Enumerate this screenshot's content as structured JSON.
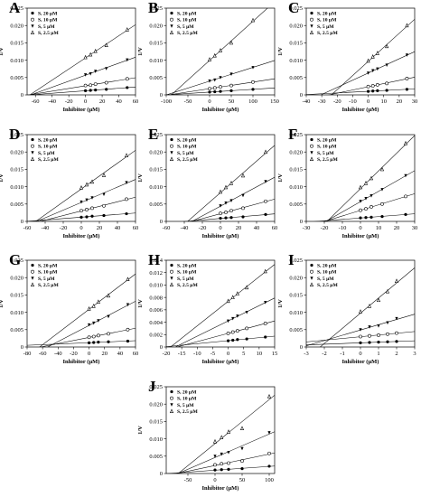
{
  "legend_labels": [
    "S, 20 μM",
    "S, 10 μM",
    "S, 5 μM",
    "S, 2.5 μM"
  ],
  "chart_data": [
    {
      "panel": "A",
      "type": "scatter",
      "xlabel": "Inhibitor (μM)",
      "ylabel": "1/V",
      "xlim": [
        -70,
        60
      ],
      "ylim": [
        0,
        0.025
      ],
      "xticks": [
        -60,
        -40,
        -20,
        0,
        20,
        40,
        60
      ],
      "yticks": [
        0.0,
        0.005,
        0.01,
        0.015,
        0.02,
        0.025
      ],
      "legend_position": "top-left",
      "grid": false,
      "series": [
        {
          "name": "S, 20 μM",
          "x": [
            0,
            6,
            12,
            25,
            50
          ],
          "y": [
            0.0012,
            0.0013,
            0.0014,
            0.0016,
            0.0021
          ]
        },
        {
          "name": "S, 10 μM",
          "x": [
            0,
            6,
            12,
            25,
            50
          ],
          "y": [
            0.0027,
            0.0028,
            0.0031,
            0.0035,
            0.0046
          ]
        },
        {
          "name": "S, 5 μM",
          "x": [
            0,
            6,
            12,
            25,
            50
          ],
          "y": [
            0.0058,
            0.0061,
            0.0068,
            0.0076,
            0.0101
          ]
        },
        {
          "name": "S, 2.5 μM",
          "x": [
            0,
            6,
            12,
            25,
            50
          ],
          "y": [
            0.0108,
            0.0116,
            0.0126,
            0.0143,
            0.0188
          ]
        }
      ]
    },
    {
      "panel": "B",
      "type": "scatter",
      "xlabel": "Inhibitor (μM)",
      "ylabel": "1/V",
      "xlim": [
        -100,
        150
      ],
      "ylim": [
        0,
        0.025
      ],
      "xticks": [
        -100,
        -50,
        0,
        50,
        100,
        150
      ],
      "yticks": [
        0.0,
        0.005,
        0.01,
        0.015,
        0.02,
        0.025
      ],
      "legend_position": "top-left",
      "grid": false,
      "series": [
        {
          "name": "S, 20 μM",
          "x": [
            0,
            12,
            25,
            50,
            100
          ],
          "y": [
            0.0008,
            0.0009,
            0.001,
            0.0012,
            0.0016
          ]
        },
        {
          "name": "S, 10 μM",
          "x": [
            0,
            12,
            25,
            50,
            100
          ],
          "y": [
            0.0018,
            0.002,
            0.0023,
            0.0027,
            0.0037
          ]
        },
        {
          "name": "S, 5 μM",
          "x": [
            0,
            12,
            25,
            50,
            100
          ],
          "y": [
            0.004,
            0.0043,
            0.005,
            0.006,
            0.0079
          ]
        },
        {
          "name": "S, 2.5 μM",
          "x": [
            0,
            12,
            25,
            50,
            100
          ],
          "y": [
            0.0102,
            0.0113,
            0.0128,
            0.015,
            0.0215
          ]
        }
      ]
    },
    {
      "panel": "C",
      "type": "scatter",
      "xlabel": "Inhibitor (μM)",
      "ylabel": "1/V",
      "xlim": [
        -40,
        30
      ],
      "ylim": [
        0,
        0.025
      ],
      "xticks": [
        -40,
        -30,
        -20,
        -10,
        0,
        10,
        20,
        30
      ],
      "yticks": [
        0.0,
        0.005,
        0.01,
        0.015,
        0.02,
        0.025
      ],
      "legend_position": "top-left",
      "grid": false,
      "series": [
        {
          "name": "S, 20 μM",
          "x": [
            0,
            3,
            6,
            12,
            25
          ],
          "y": [
            0.001,
            0.0011,
            0.0012,
            0.0013,
            0.0016
          ]
        },
        {
          "name": "S, 10 μM",
          "x": [
            0,
            3,
            6,
            12,
            25
          ],
          "y": [
            0.0024,
            0.0026,
            0.0029,
            0.0033,
            0.0047
          ]
        },
        {
          "name": "S, 5 μM",
          "x": [
            0,
            3,
            6,
            12,
            25
          ],
          "y": [
            0.0063,
            0.007,
            0.0075,
            0.0086,
            0.0115
          ]
        },
        {
          "name": "S, 2.5 μM",
          "x": [
            0,
            3,
            6,
            12,
            25
          ],
          "y": [
            0.0098,
            0.011,
            0.012,
            0.014,
            0.02
          ]
        }
      ]
    },
    {
      "panel": "D",
      "type": "scatter",
      "xlabel": "Inhibitor (μM)",
      "ylabel": "1/V",
      "xlim": [
        -60,
        60
      ],
      "ylim": [
        0,
        0.025
      ],
      "xticks": [
        -60,
        -40,
        -20,
        0,
        20,
        40,
        60
      ],
      "yticks": [
        0.0,
        0.005,
        0.01,
        0.015,
        0.02,
        0.025
      ],
      "legend_position": "top-left",
      "grid": false,
      "series": [
        {
          "name": "S, 20 μM",
          "x": [
            0,
            6,
            12,
            25,
            50
          ],
          "y": [
            0.0012,
            0.0013,
            0.0015,
            0.0017,
            0.0022
          ]
        },
        {
          "name": "S, 10 μM",
          "x": [
            0,
            6,
            12,
            25,
            50
          ],
          "y": [
            0.0031,
            0.0034,
            0.0038,
            0.0045,
            0.0064
          ]
        },
        {
          "name": "S, 5 μM",
          "x": [
            0,
            6,
            12,
            25,
            50
          ],
          "y": [
            0.0056,
            0.0062,
            0.0068,
            0.0078,
            0.0112
          ]
        },
        {
          "name": "S, 2.5 μM",
          "x": [
            0,
            6,
            12,
            25,
            50
          ],
          "y": [
            0.0097,
            0.0106,
            0.0114,
            0.0133,
            0.019
          ]
        }
      ]
    },
    {
      "panel": "E",
      "type": "scatter",
      "xlabel": "Inhibitor (μM)",
      "ylabel": "1/V",
      "xlim": [
        -60,
        60
      ],
      "ylim": [
        0,
        0.025
      ],
      "xticks": [
        -60,
        -40,
        -20,
        0,
        20,
        40,
        60
      ],
      "yticks": [
        0.0,
        0.005,
        0.01,
        0.015,
        0.02,
        0.025
      ],
      "legend_position": "top-left",
      "grid": false,
      "series": [
        {
          "name": "S, 20 μM",
          "x": [
            0,
            6,
            12,
            25,
            50
          ],
          "y": [
            0.0009,
            0.001,
            0.0011,
            0.0013,
            0.002
          ]
        },
        {
          "name": "S, 10 μM",
          "x": [
            0,
            6,
            12,
            25,
            50
          ],
          "y": [
            0.0023,
            0.0026,
            0.0031,
            0.0038,
            0.0058
          ]
        },
        {
          "name": "S, 5 μM",
          "x": [
            0,
            6,
            12,
            25,
            50
          ],
          "y": [
            0.0045,
            0.0053,
            0.006,
            0.0075,
            0.0115
          ]
        },
        {
          "name": "S, 2.5 μM",
          "x": [
            0,
            6,
            12,
            25,
            50
          ],
          "y": [
            0.0085,
            0.0098,
            0.011,
            0.0132,
            0.02
          ]
        }
      ]
    },
    {
      "panel": "F",
      "type": "scatter",
      "xlabel": "Inhibitor (μM)",
      "ylabel": "1/V",
      "xlim": [
        -30,
        30
      ],
      "ylim": [
        0,
        0.025
      ],
      "xticks": [
        -30,
        -20,
        -10,
        0,
        10,
        20,
        30
      ],
      "yticks": [
        0.0,
        0.005,
        0.01,
        0.015,
        0.02,
        0.025
      ],
      "legend_position": "top-left",
      "grid": false,
      "series": [
        {
          "name": "S, 20 μM",
          "x": [
            0,
            3,
            6,
            12,
            25
          ],
          "y": [
            0.001,
            0.0011,
            0.0012,
            0.0014,
            0.002
          ]
        },
        {
          "name": "S, 10 μM",
          "x": [
            0,
            3,
            6,
            12,
            25
          ],
          "y": [
            0.0032,
            0.0036,
            0.0042,
            0.005,
            0.0072
          ]
        },
        {
          "name": "S, 5 μM",
          "x": [
            0,
            3,
            6,
            12,
            25
          ],
          "y": [
            0.0058,
            0.0066,
            0.0074,
            0.0092,
            0.0132
          ]
        },
        {
          "name": "S, 2.5 μM",
          "x": [
            0,
            3,
            6,
            12,
            25
          ],
          "y": [
            0.0098,
            0.011,
            0.0124,
            0.015,
            0.0225
          ]
        }
      ]
    },
    {
      "panel": "G",
      "type": "scatter",
      "xlabel": "Inhibitor (μM)",
      "ylabel": "1/V",
      "xlim": [
        -80,
        60
      ],
      "ylim": [
        0,
        0.025
      ],
      "xticks": [
        -80,
        -60,
        -40,
        -20,
        0,
        20,
        40,
        60
      ],
      "yticks": [
        0.0,
        0.005,
        0.01,
        0.015,
        0.02,
        0.025
      ],
      "legend_position": "top-left",
      "grid": false,
      "series": [
        {
          "name": "S, 20 μM",
          "x": [
            0,
            6,
            12,
            25,
            50
          ],
          "y": [
            0.0012,
            0.0013,
            0.0014,
            0.0015,
            0.0017
          ]
        },
        {
          "name": "S, 10 μM",
          "x": [
            0,
            6,
            12,
            25,
            50
          ],
          "y": [
            0.0028,
            0.003,
            0.0033,
            0.0038,
            0.005
          ]
        },
        {
          "name": "S, 5 μM",
          "x": [
            0,
            6,
            12,
            25,
            50
          ],
          "y": [
            0.0064,
            0.0069,
            0.0076,
            0.0088,
            0.0122
          ]
        },
        {
          "name": "S, 2.5 μM",
          "x": [
            0,
            6,
            12,
            25,
            50
          ],
          "y": [
            0.011,
            0.0118,
            0.013,
            0.0148,
            0.0195
          ]
        }
      ]
    },
    {
      "panel": "H",
      "type": "scatter",
      "xlabel": "Inhibitor (μM)",
      "ylabel": "1/V",
      "xlim": [
        -20,
        15
      ],
      "ylim": [
        0,
        0.014
      ],
      "xticks": [
        -20,
        -15,
        -10,
        -5,
        0,
        5,
        10,
        15
      ],
      "yticks": [
        0.0,
        0.002,
        0.004,
        0.006,
        0.008,
        0.01,
        0.012,
        0.014
      ],
      "legend_position": "top-left",
      "grid": false,
      "series": [
        {
          "name": "S, 20 μM",
          "x": [
            0,
            1.5,
            3,
            6,
            12
          ],
          "y": [
            0.001,
            0.0011,
            0.0012,
            0.0013,
            0.0016
          ]
        },
        {
          "name": "S, 10 μM",
          "x": [
            0,
            1.5,
            3,
            6,
            12
          ],
          "y": [
            0.0022,
            0.0024,
            0.0026,
            0.003,
            0.0038
          ]
        },
        {
          "name": "S, 5 μM",
          "x": [
            0,
            1.5,
            3,
            6,
            12
          ],
          "y": [
            0.0042,
            0.0046,
            0.005,
            0.0056,
            0.0072
          ]
        },
        {
          "name": "S, 2.5 μM",
          "x": [
            0,
            1.5,
            3,
            6,
            12
          ],
          "y": [
            0.0074,
            0.008,
            0.0086,
            0.0096,
            0.0122
          ]
        }
      ]
    },
    {
      "panel": "I",
      "type": "scatter",
      "xlabel": "Inhibitor (μM)",
      "ylabel": "1/V",
      "xlim": [
        -3,
        3
      ],
      "ylim": [
        0,
        0.025
      ],
      "xticks": [
        -3,
        -2,
        -1,
        0,
        1,
        2,
        3
      ],
      "yticks": [
        0.0,
        0.005,
        0.01,
        0.015,
        0.02,
        0.025
      ],
      "legend_position": "top-left",
      "grid": false,
      "series": [
        {
          "name": "S, 20 μM",
          "x": [
            0,
            0.5,
            1,
            1.5,
            2
          ],
          "y": [
            0.0012,
            0.0013,
            0.0014,
            0.0015,
            0.0016
          ]
        },
        {
          "name": "S, 10 μM",
          "x": [
            0,
            0.5,
            1,
            1.5,
            2
          ],
          "y": [
            0.003,
            0.0032,
            0.0034,
            0.0037,
            0.004
          ]
        },
        {
          "name": "S, 5 μM",
          "x": [
            0,
            0.5,
            1,
            1.5,
            2
          ],
          "y": [
            0.005,
            0.0058,
            0.0061,
            0.007,
            0.0082
          ]
        },
        {
          "name": "S, 2.5 μM",
          "x": [
            0,
            0.5,
            1,
            1.5,
            2
          ],
          "y": [
            0.0102,
            0.0118,
            0.0135,
            0.016,
            0.019
          ]
        }
      ]
    },
    {
      "panel": "J",
      "type": "scatter",
      "xlabel": "Inhibitor (μM)",
      "ylabel": "1/V",
      "xlim": [
        -90,
        110
      ],
      "ylim": [
        0,
        0.025
      ],
      "xticks": [
        -50,
        0,
        50,
        100
      ],
      "yticks": [
        0.0,
        0.005,
        0.01,
        0.015,
        0.02,
        0.025
      ],
      "legend_position": "top-left",
      "grid": false,
      "series": [
        {
          "name": "S, 20 μM",
          "x": [
            0,
            12,
            25,
            50,
            100
          ],
          "y": [
            0.001,
            0.0011,
            0.0012,
            0.0014,
            0.0021
          ]
        },
        {
          "name": "S, 10 μM",
          "x": [
            0,
            12,
            25,
            50,
            100
          ],
          "y": [
            0.0025,
            0.0028,
            0.003,
            0.0036,
            0.0058
          ]
        },
        {
          "name": "S, 5 μM",
          "x": [
            0,
            12,
            25,
            50,
            100
          ],
          "y": [
            0.005,
            0.0056,
            0.0061,
            0.0072,
            0.0118
          ]
        },
        {
          "name": "S, 2.5 μM",
          "x": [
            0,
            12,
            25,
            50,
            100
          ],
          "y": [
            0.0092,
            0.0104,
            0.012,
            0.013,
            0.0222
          ]
        }
      ]
    }
  ]
}
